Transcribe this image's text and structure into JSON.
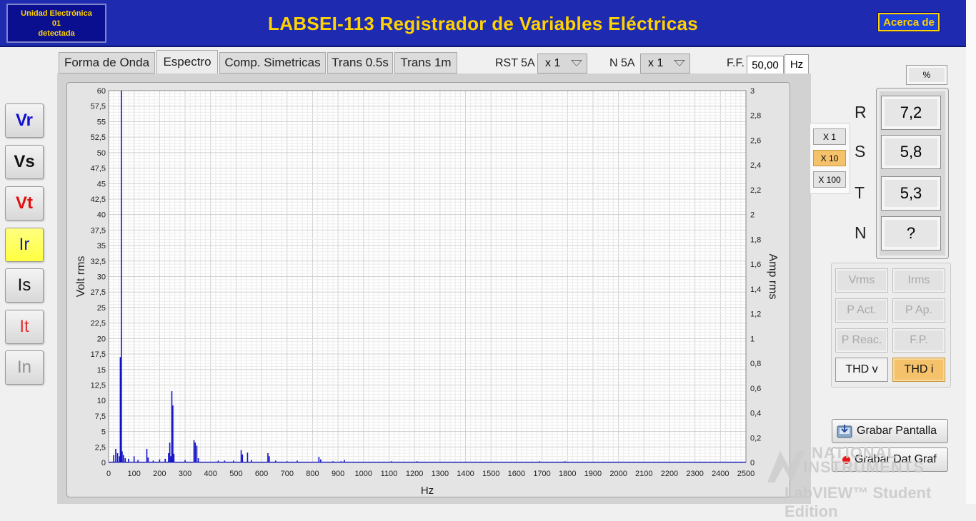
{
  "header": {
    "unit_line1": "Unidad Electrónica",
    "unit_line2": "01",
    "unit_line3": "detectada",
    "title": "LABSEI-113 Registrador de Variables Eléctricas",
    "about_label": "Acerca de"
  },
  "tabs": [
    {
      "label": "Forma de Onda"
    },
    {
      "label": "Espectro"
    },
    {
      "label": "Comp. Simetricas"
    },
    {
      "label": "Trans 0.5s"
    },
    {
      "label": "Trans 1m"
    }
  ],
  "controls": {
    "rst_label": "RST 5A",
    "rst_value": "x 1",
    "n_label": "N 5A",
    "n_value": "x 1",
    "ff_label": "F.F.",
    "ff_value": "50,00",
    "ff_unit": "Hz"
  },
  "signals": [
    {
      "label": "Vr",
      "color": "#1010d0",
      "bold": true
    },
    {
      "label": "Vs",
      "color": "#111111",
      "bold": true
    },
    {
      "label": "Vt",
      "color": "#e01010",
      "bold": true
    },
    {
      "label": "Ir",
      "color": "#1818c0",
      "bold": false,
      "selected": true
    },
    {
      "label": "Is",
      "color": "#111111",
      "bold": false
    },
    {
      "label": "It",
      "color": "#e03030",
      "bold": false
    },
    {
      "label": "In",
      "color": "#909090",
      "bold": false
    }
  ],
  "percent_label": "%",
  "multipliers": [
    {
      "label": "X 1",
      "selected": false
    },
    {
      "label": "X 10",
      "selected": true
    },
    {
      "label": "X 100",
      "selected": false
    }
  ],
  "phases": [
    {
      "label": "R",
      "value": "7,2"
    },
    {
      "label": "S",
      "value": "5,8"
    },
    {
      "label": "T",
      "value": "5,3"
    },
    {
      "label": "N",
      "value": "?"
    }
  ],
  "measurements": [
    {
      "label": "Vrms",
      "state": "disabled"
    },
    {
      "label": "Irms",
      "state": "disabled"
    },
    {
      "label": "P Act.",
      "state": "disabled"
    },
    {
      "label": "P Ap.",
      "state": "disabled"
    },
    {
      "label": "P Reac.",
      "state": "disabled"
    },
    {
      "label": "F.P.",
      "state": "disabled"
    },
    {
      "label": "THD v",
      "state": "enabled"
    },
    {
      "label": "THD i",
      "state": "selected"
    }
  ],
  "actions": {
    "save_screen": "Grabar Pantalla",
    "save_graph": "Grabar Dat Graf"
  },
  "watermark": {
    "line1": "NATIONAL",
    "line2": "INSTRUMENTS",
    "line3": "LabVIEW™ Student Edition"
  },
  "chart_data": {
    "type": "bar",
    "xlabel": "Hz",
    "ylabel": "Volt rms",
    "y2label": "Amp rms",
    "xlim": [
      0,
      2500
    ],
    "ylim": [
      0,
      60
    ],
    "y2lim": [
      0,
      3
    ],
    "xticks": [
      "0",
      "100",
      "200",
      "300",
      "400",
      "500",
      "600",
      "700",
      "800",
      "900",
      "1000",
      "1100",
      "1200",
      "1300",
      "1400",
      "1500",
      "1600",
      "1700",
      "1800",
      "1900",
      "2000",
      "2100",
      "2200",
      "2300",
      "2400",
      "2500"
    ],
    "yticks": [
      "0",
      "2,5",
      "5",
      "7,5",
      "10",
      "12,5",
      "15",
      "17,5",
      "20",
      "22,5",
      "25",
      "27,5",
      "30",
      "32,5",
      "35",
      "37,5",
      "40",
      "42,5",
      "45",
      "47,5",
      "50",
      "52,5",
      "55",
      "57,5",
      "60"
    ],
    "y2ticks": [
      "0",
      "0,2",
      "0,4",
      "0,6",
      "0,8",
      "1",
      "1,2",
      "1,4",
      "1,6",
      "1,8",
      "2",
      "2,2",
      "2,4",
      "2,6",
      "2,8",
      "3"
    ],
    "grid": true,
    "series_color": "#1010c8",
    "points": [
      [
        20,
        1.2
      ],
      [
        28,
        2.2
      ],
      [
        35,
        1.5
      ],
      [
        42,
        1.0
      ],
      [
        46,
        17
      ],
      [
        50,
        60
      ],
      [
        53,
        1.8
      ],
      [
        58,
        1.2
      ],
      [
        65,
        0.7
      ],
      [
        78,
        0.6
      ],
      [
        100,
        1.0
      ],
      [
        115,
        0.4
      ],
      [
        150,
        2.2
      ],
      [
        155,
        0.8
      ],
      [
        175,
        0.3
      ],
      [
        200,
        0.5
      ],
      [
        222,
        0.6
      ],
      [
        235,
        1.5
      ],
      [
        240,
        3.2
      ],
      [
        244,
        1.0
      ],
      [
        248,
        11.5
      ],
      [
        252,
        9.2
      ],
      [
        256,
        1.4
      ],
      [
        300,
        0.4
      ],
      [
        335,
        3.6
      ],
      [
        340,
        3.2
      ],
      [
        346,
        2.7
      ],
      [
        352,
        0.7
      ],
      [
        430,
        0.3
      ],
      [
        455,
        0.3
      ],
      [
        490,
        0.3
      ],
      [
        520,
        2.0
      ],
      [
        525,
        1.3
      ],
      [
        545,
        1.6
      ],
      [
        560,
        0.4
      ],
      [
        625,
        1.5
      ],
      [
        630,
        1.0
      ],
      [
        655,
        0.3
      ],
      [
        700,
        0.2
      ],
      [
        740,
        0.3
      ],
      [
        825,
        0.9
      ],
      [
        832,
        0.5
      ],
      [
        880,
        0.2
      ],
      [
        912,
        0.2
      ],
      [
        925,
        0.4
      ],
      [
        1110,
        0.2
      ],
      [
        1210,
        0.2
      ],
      [
        1690,
        0.2
      ],
      [
        1790,
        0.2
      ]
    ]
  }
}
